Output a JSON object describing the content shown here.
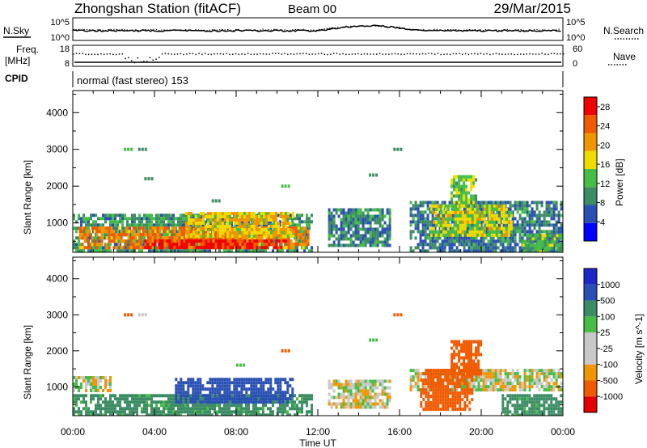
{
  "header": {
    "title": "Zhongshan Station (fitACF)",
    "beam": "Beam 00",
    "date": "29/Mar/2015"
  },
  "noise_panel": {
    "left_label": "N.Sky",
    "right_label": "N.Search",
    "left_ticks": [
      "10^5",
      "10^0"
    ],
    "right_ticks": [
      "10^5",
      "10^0"
    ]
  },
  "freq_panel": {
    "left_label_1": "Freq.",
    "left_label_2": "[MHz]",
    "right_label": "Nave",
    "left_ticks": [
      "18",
      "8"
    ],
    "right_ticks": [
      "60",
      "0"
    ]
  },
  "cpid": {
    "label": "CPID",
    "mode_text": "normal (fast stereo) 153"
  },
  "colors": {
    "power_scale": [
      "#0000ff",
      "#2a4fb4",
      "#3c8c64",
      "#46be46",
      "#f0dc00",
      "#f09600",
      "#f05a00",
      "#f00000"
    ],
    "velocity_scale": [
      "#e00000",
      "#f05a00",
      "#f09600",
      "#c8c8c8",
      "#c8c8c8",
      "#46be46",
      "#3c8c64",
      "#2a4fb4",
      "#1e28c8"
    ]
  },
  "chart_data": [
    {
      "type": "heatmap",
      "name": "Power",
      "xlabel": "Time UT",
      "ylabel": "Slant Range [km]",
      "x_ticks": [
        "00:00",
        "04:00",
        "08:00",
        "12:00",
        "16:00",
        "20:00",
        "00:00"
      ],
      "y_ticks": [
        1000,
        2000,
        3000,
        4000
      ],
      "ylim": [
        200,
        4600
      ],
      "xlim_hours": [
        0,
        24
      ],
      "colorbar": {
        "label": "Power [dB]",
        "ticks": [
          4,
          8,
          12,
          16,
          20,
          24,
          28
        ],
        "range": [
          0,
          30
        ]
      },
      "regions": [
        {
          "t": [
            0.0,
            11.7
          ],
          "r": [
            250,
            1250
          ],
          "level": 10,
          "tmid": 5.5
        },
        {
          "t": [
            0.3,
            11.5
          ],
          "r": [
            300,
            900
          ],
          "level": 22,
          "tmid": 6.5
        },
        {
          "t": [
            3.5,
            10.5
          ],
          "r": [
            300,
            550
          ],
          "level": 28,
          "tmid": 6.5
        },
        {
          "t": [
            5.5,
            10.8
          ],
          "r": [
            600,
            1300
          ],
          "level": 18,
          "tmid": 8.5
        },
        {
          "t": [
            12.5,
            15.5
          ],
          "r": [
            400,
            1400
          ],
          "level": 9,
          "tmid": 14.0
        },
        {
          "t": [
            16.5,
            24.0
          ],
          "r": [
            200,
            1600
          ],
          "level": 8,
          "tmid": 20.0
        },
        {
          "t": [
            17.5,
            21.5
          ],
          "r": [
            700,
            1500
          ],
          "level": 16,
          "tmid": 19.5
        },
        {
          "t": [
            18.5,
            19.8
          ],
          "r": [
            1500,
            2300
          ],
          "level": 14,
          "tmid": 19.0
        },
        {
          "t": [
            22.0,
            24.0
          ],
          "r": [
            250,
            700
          ],
          "level": 12,
          "tmid": 23.0
        }
      ],
      "flecks": [
        {
          "t": 2.5,
          "r": 3000,
          "level": 12
        },
        {
          "t": 3.2,
          "r": 3000,
          "level": 8
        },
        {
          "t": 3.5,
          "r": 2200,
          "level": 10
        },
        {
          "t": 6.8,
          "r": 1600,
          "level": 8
        },
        {
          "t": 10.2,
          "r": 2000,
          "level": 12
        },
        {
          "t": 15.7,
          "r": 3000,
          "level": 8
        },
        {
          "t": 14.5,
          "r": 2300,
          "level": 10
        }
      ]
    },
    {
      "type": "heatmap",
      "name": "Velocity",
      "xlabel": "Time UT",
      "ylabel": "Slant Range [km]",
      "x_ticks": [
        "00:00",
        "04:00",
        "08:00",
        "12:00",
        "16:00",
        "20:00",
        "00:00"
      ],
      "y_ticks": [
        1000,
        2000,
        3000,
        4000
      ],
      "ylim": [
        200,
        4600
      ],
      "xlim_hours": [
        0,
        24
      ],
      "colorbar": {
        "label": "Velocity [m s^-1]",
        "ticks": [
          1000,
          500,
          100,
          25,
          -25,
          -100,
          -500,
          -1000
        ]
      },
      "regions": [
        {
          "t": [
            0.0,
            1.8
          ],
          "r": [
            900,
            1300
          ],
          "v": 0,
          "tmid": 1.0
        },
        {
          "t": [
            0.0,
            11.7
          ],
          "r": [
            250,
            800
          ],
          "v": 150,
          "tmid": 5.5
        },
        {
          "t": [
            5.0,
            10.8
          ],
          "r": [
            600,
            1250
          ],
          "v": 700,
          "tmid": 8.0
        },
        {
          "t": [
            12.5,
            15.5
          ],
          "r": [
            400,
            1200
          ],
          "v": 0,
          "tmid": 14.0
        },
        {
          "t": [
            16.5,
            24.0
          ],
          "r": [
            900,
            1500
          ],
          "v": 0,
          "tmid": 20.5
        },
        {
          "t": [
            17.0,
            19.5
          ],
          "r": [
            400,
            1500
          ],
          "v": -300,
          "tmid": 18.0
        },
        {
          "t": [
            18.5,
            20.0
          ],
          "r": [
            1400,
            2300
          ],
          "v": -200,
          "tmid": 19.2
        },
        {
          "t": [
            21.0,
            24.0
          ],
          "r": [
            250,
            800
          ],
          "v": 150,
          "tmid": 22.5
        }
      ],
      "flecks": [
        {
          "t": 2.5,
          "r": 3000,
          "v": -300
        },
        {
          "t": 3.2,
          "r": 3000,
          "v": 0
        },
        {
          "t": 8.0,
          "r": 1600,
          "v": 80
        },
        {
          "t": 10.2,
          "r": 2000,
          "v": -300
        },
        {
          "t": 15.7,
          "r": 3000,
          "v": -400
        },
        {
          "t": 14.5,
          "r": 2300,
          "v": 100
        }
      ]
    }
  ]
}
